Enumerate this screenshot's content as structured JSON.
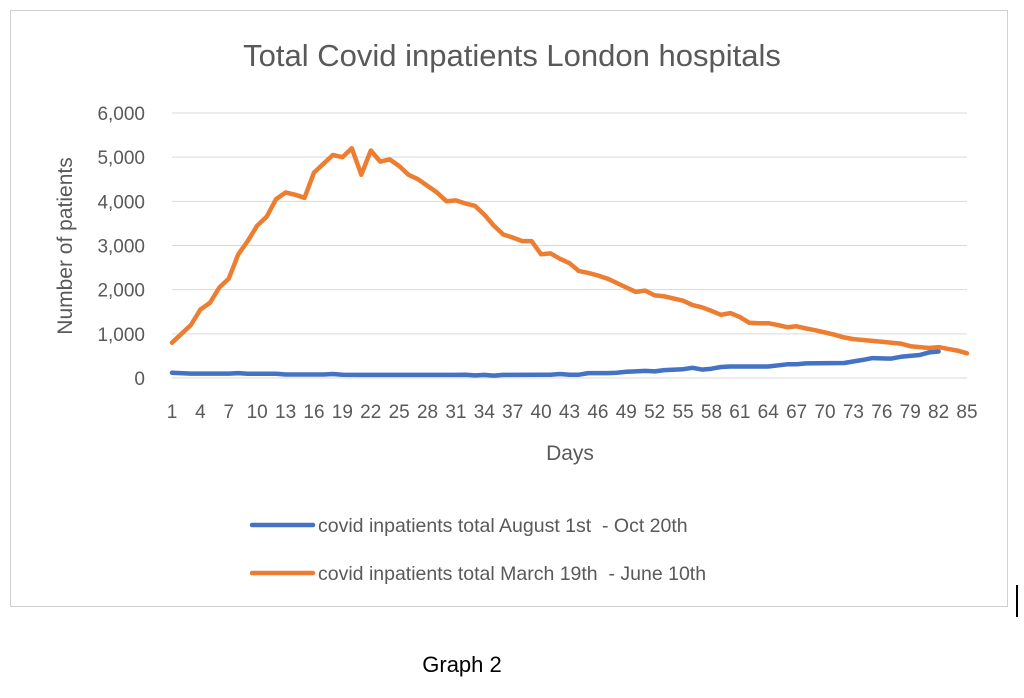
{
  "caption": "Graph 2",
  "chart_data": {
    "type": "line",
    "title": "Total Covid inpatients London hospitals",
    "xlabel": "Days",
    "ylabel": "Number of patients",
    "xlim": [
      1,
      85
    ],
    "ylim": [
      0,
      6000
    ],
    "yticks": [
      0,
      1000,
      2000,
      3000,
      4000,
      5000,
      6000
    ],
    "ytick_labels": [
      "0",
      "1,000",
      "2,000",
      "3,000",
      "4,000",
      "5,000",
      "6,000"
    ],
    "xticks": [
      1,
      4,
      7,
      10,
      13,
      16,
      19,
      22,
      25,
      28,
      31,
      34,
      37,
      40,
      43,
      46,
      49,
      52,
      55,
      58,
      61,
      64,
      67,
      70,
      73,
      76,
      79,
      82,
      85
    ],
    "grid": true,
    "legend_position": "bottom",
    "series": [
      {
        "name": "covid inpatients total August 1st  - Oct 20th",
        "color": "#4472C4",
        "points": [
          [
            1,
            120
          ],
          [
            3,
            100
          ],
          [
            7,
            100
          ],
          [
            8,
            110
          ],
          [
            9,
            95
          ],
          [
            12,
            95
          ],
          [
            13,
            80
          ],
          [
            17,
            80
          ],
          [
            18,
            90
          ],
          [
            19,
            75
          ],
          [
            21,
            70
          ],
          [
            31,
            70
          ],
          [
            32,
            75
          ],
          [
            33,
            60
          ],
          [
            34,
            70
          ],
          [
            35,
            55
          ],
          [
            36,
            70
          ],
          [
            40,
            75
          ],
          [
            41,
            75
          ],
          [
            42,
            90
          ],
          [
            43,
            75
          ],
          [
            44,
            75
          ],
          [
            45,
            110
          ],
          [
            47,
            110
          ],
          [
            48,
            120
          ],
          [
            49,
            140
          ],
          [
            51,
            160
          ],
          [
            52,
            150
          ],
          [
            53,
            180
          ],
          [
            55,
            200
          ],
          [
            56,
            230
          ],
          [
            57,
            190
          ],
          [
            58,
            210
          ],
          [
            59,
            250
          ],
          [
            60,
            260
          ],
          [
            64,
            260
          ],
          [
            66,
            310
          ],
          [
            67,
            310
          ],
          [
            68,
            330
          ],
          [
            72,
            340
          ],
          [
            74,
            410
          ],
          [
            75,
            450
          ],
          [
            77,
            440
          ],
          [
            78,
            480
          ],
          [
            80,
            520
          ],
          [
            81,
            580
          ],
          [
            82,
            600
          ]
        ]
      },
      {
        "name": "covid inpatients total March 19th  - June 10th",
        "color": "#ED7D31",
        "points": [
          [
            1,
            800
          ],
          [
            2,
            1000
          ],
          [
            3,
            1200
          ],
          [
            4,
            1550
          ],
          [
            5,
            1700
          ],
          [
            6,
            2050
          ],
          [
            7,
            2250
          ],
          [
            8,
            2800
          ],
          [
            9,
            3100
          ],
          [
            10,
            3450
          ],
          [
            11,
            3650
          ],
          [
            12,
            4050
          ],
          [
            13,
            4200
          ],
          [
            14,
            4150
          ],
          [
            15,
            4080
          ],
          [
            16,
            4650
          ],
          [
            17,
            4850
          ],
          [
            18,
            5050
          ],
          [
            19,
            5000
          ],
          [
            20,
            5200
          ],
          [
            21,
            4600
          ],
          [
            22,
            5150
          ],
          [
            23,
            4900
          ],
          [
            24,
            4950
          ],
          [
            25,
            4800
          ],
          [
            26,
            4600
          ],
          [
            27,
            4500
          ],
          [
            28,
            4350
          ],
          [
            29,
            4200
          ],
          [
            30,
            4000
          ],
          [
            31,
            4020
          ],
          [
            32,
            3950
          ],
          [
            33,
            3900
          ],
          [
            34,
            3700
          ],
          [
            35,
            3450
          ],
          [
            36,
            3250
          ],
          [
            37,
            3180
          ],
          [
            38,
            3100
          ],
          [
            39,
            3100
          ],
          [
            40,
            2800
          ],
          [
            41,
            2820
          ],
          [
            42,
            2700
          ],
          [
            43,
            2600
          ],
          [
            44,
            2420
          ],
          [
            45,
            2380
          ],
          [
            46,
            2320
          ],
          [
            47,
            2250
          ],
          [
            48,
            2150
          ],
          [
            49,
            2050
          ],
          [
            50,
            1950
          ],
          [
            51,
            1980
          ],
          [
            52,
            1870
          ],
          [
            53,
            1850
          ],
          [
            54,
            1800
          ],
          [
            55,
            1750
          ],
          [
            56,
            1650
          ],
          [
            57,
            1600
          ],
          [
            58,
            1520
          ],
          [
            59,
            1430
          ],
          [
            60,
            1470
          ],
          [
            61,
            1380
          ],
          [
            62,
            1250
          ],
          [
            63,
            1240
          ],
          [
            64,
            1240
          ],
          [
            65,
            1200
          ],
          [
            66,
            1150
          ],
          [
            67,
            1170
          ],
          [
            68,
            1120
          ],
          [
            69,
            1080
          ],
          [
            70,
            1030
          ],
          [
            71,
            980
          ],
          [
            72,
            920
          ],
          [
            73,
            880
          ],
          [
            74,
            860
          ],
          [
            75,
            840
          ],
          [
            76,
            820
          ],
          [
            77,
            800
          ],
          [
            78,
            780
          ],
          [
            79,
            720
          ],
          [
            80,
            700
          ],
          [
            81,
            680
          ],
          [
            82,
            700
          ],
          [
            83,
            660
          ],
          [
            84,
            620
          ],
          [
            85,
            560
          ]
        ]
      }
    ]
  }
}
